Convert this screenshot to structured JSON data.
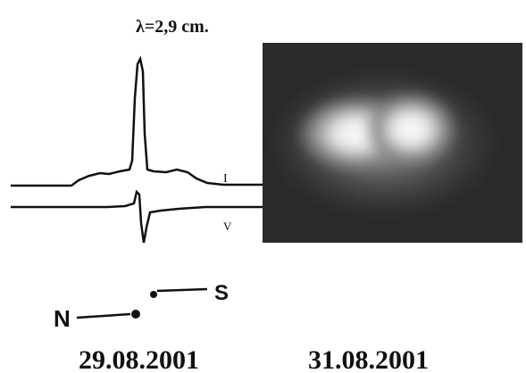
{
  "figure": {
    "wavelength_label": "λ=2,9 cm.",
    "curve_labels": [
      "I",
      "V"
    ],
    "direction": {
      "north": "N",
      "south": "S"
    },
    "dates": [
      "29.08.2001",
      "31.08.2001"
    ]
  }
}
